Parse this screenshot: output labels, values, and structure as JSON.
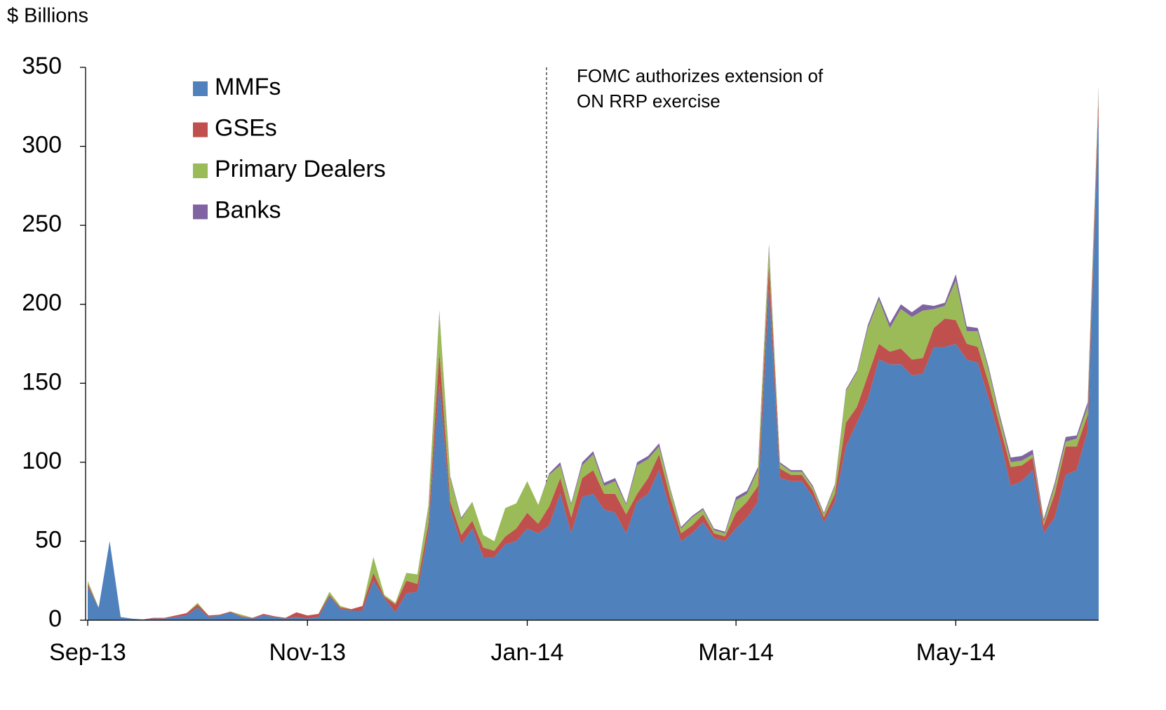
{
  "chart_data": {
    "type": "stacked_area",
    "ylabel": "$ Billions",
    "annotation": [
      "FOMC authorizes extension of",
      "ON RRP exercise"
    ],
    "ylim": [
      0,
      350
    ],
    "yticks": [
      0,
      50,
      100,
      150,
      200,
      250,
      300,
      350
    ],
    "grid": false,
    "legend": "upper left",
    "categories": [
      "Sep-13",
      null,
      null,
      null,
      null,
      null,
      null,
      null,
      null,
      null,
      null,
      null,
      null,
      null,
      null,
      null,
      null,
      null,
      null,
      null,
      "Nov-13",
      null,
      null,
      null,
      null,
      null,
      null,
      null,
      null,
      null,
      null,
      null,
      null,
      null,
      null,
      null,
      null,
      null,
      null,
      null,
      "Jan-14",
      null,
      null,
      null,
      null,
      null,
      null,
      null,
      null,
      null,
      null,
      null,
      null,
      null,
      null,
      null,
      null,
      null,
      null,
      "Mar-14",
      null,
      null,
      null,
      null,
      null,
      null,
      null,
      null,
      null,
      null,
      null,
      null,
      null,
      null,
      null,
      null,
      null,
      null,
      null,
      "May-14",
      null,
      null,
      null,
      null,
      null,
      null,
      null,
      null,
      null,
      null,
      null,
      null,
      null
    ],
    "series": [
      {
        "name": "MMFs",
        "color": "#4f81bd",
        "values": [
          21,
          8,
          50,
          2,
          1,
          0.5,
          1,
          1,
          2,
          3,
          8,
          2,
          3,
          5,
          2,
          1,
          3,
          2,
          1,
          2,
          1,
          2,
          15,
          7,
          6,
          6,
          25,
          14,
          5,
          17,
          18,
          55,
          150,
          70,
          48,
          58,
          40,
          40,
          48,
          50,
          58,
          55,
          60,
          80,
          55,
          78,
          80,
          70,
          68,
          55,
          75,
          80,
          95,
          70,
          50,
          55,
          62,
          52,
          50,
          58,
          65,
          75,
          210,
          90,
          88,
          88,
          78,
          62,
          75,
          110,
          125,
          140,
          165,
          162,
          162,
          155,
          156,
          173,
          173,
          175,
          165,
          163,
          140,
          115,
          85,
          88,
          95,
          55,
          65,
          92,
          95,
          120,
          320
        ]
      },
      {
        "name": "GSEs",
        "color": "#c0504d",
        "values": [
          2,
          0,
          0,
          0,
          0,
          0,
          0.5,
          0.5,
          1,
          1.5,
          2,
          1,
          0.5,
          0.5,
          0.5,
          0.5,
          1,
          0.5,
          0.5,
          3,
          2,
          2,
          1,
          1,
          1,
          3,
          5,
          1,
          5,
          8,
          5,
          6,
          20,
          5,
          6,
          5,
          6,
          4,
          5,
          8,
          10,
          6,
          12,
          10,
          10,
          12,
          15,
          10,
          12,
          12,
          5,
          10,
          10,
          8,
          5,
          5,
          5,
          3,
          3,
          10,
          10,
          10,
          15,
          6,
          4,
          4,
          4,
          3,
          5,
          15,
          10,
          15,
          10,
          8,
          10,
          10,
          10,
          12,
          18,
          15,
          10,
          10,
          10,
          8,
          12,
          10,
          8,
          5,
          15,
          18,
          15,
          10,
          10
        ]
      },
      {
        "name": "Primary Dealers",
        "color": "#9bbb59",
        "values": [
          2,
          0,
          0,
          0,
          0,
          0,
          0,
          0,
          0,
          0,
          1,
          0,
          0,
          0,
          1,
          0,
          0,
          0,
          0,
          0,
          0,
          0,
          2,
          1,
          0,
          0,
          10,
          1,
          1,
          5,
          6,
          10,
          25,
          15,
          10,
          12,
          8,
          6,
          18,
          16,
          20,
          12,
          20,
          8,
          8,
          8,
          10,
          5,
          8,
          6,
          18,
          12,
          5,
          5,
          3,
          5,
          3,
          2,
          2,
          8,
          5,
          10,
          10,
          3,
          2,
          2,
          2,
          2,
          5,
          20,
          22,
          30,
          28,
          15,
          25,
          27,
          30,
          12,
          8,
          25,
          8,
          10,
          8,
          5,
          3,
          3,
          2,
          2,
          5,
          3,
          5,
          5,
          5
        ]
      },
      {
        "name": "Banks",
        "color": "#8064a2",
        "values": [
          0,
          0,
          0,
          0,
          0,
          0,
          0,
          0,
          0,
          0,
          0,
          0,
          0,
          0,
          0,
          0,
          0,
          0,
          0,
          0,
          0,
          0,
          0,
          0,
          0,
          0,
          0,
          0,
          0,
          0,
          0,
          1,
          1,
          1,
          1,
          0,
          0,
          0,
          0,
          0,
          0,
          0,
          1,
          2,
          1,
          2,
          2,
          2,
          2,
          1,
          2,
          2,
          2,
          1,
          1,
          1,
          1,
          1,
          1,
          2,
          2,
          2,
          3,
          1,
          1,
          1,
          1,
          1,
          1,
          1,
          1,
          2,
          2,
          3,
          3,
          3,
          4,
          2,
          2,
          4,
          3,
          2,
          2,
          2,
          3,
          3,
          3,
          2,
          2,
          3,
          2,
          3,
          3
        ]
      }
    ]
  }
}
